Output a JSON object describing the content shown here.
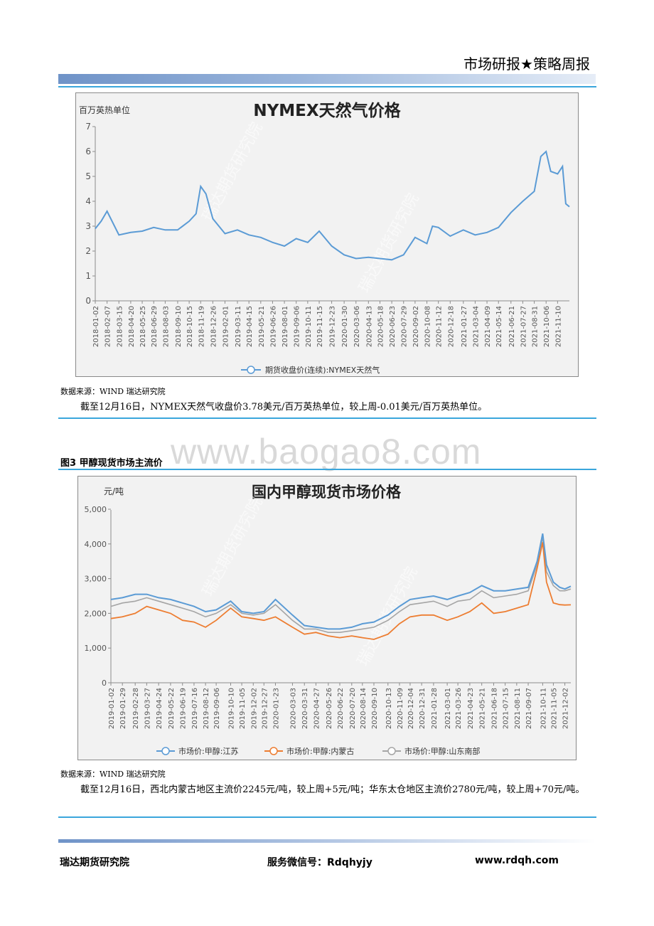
{
  "header": {
    "title": "市场研报★策略周报"
  },
  "watermark": "www.baogao8.com",
  "chart1": {
    "title": "NYMEX天然气价格",
    "unit": "百万英热单位",
    "stamp": "瑞达期货研究院",
    "source": "数据来源：WIND 瑞达研究院",
    "summary": "截至12月16日，NYMEX天然气收盘价3.78美元/百万英热单位，较上周-0.01美元/百万英热单位。"
  },
  "figure3": {
    "caption": "图3 甲醇现货市场主流价"
  },
  "chart2": {
    "title": "国内甲醇现货市场价格",
    "unit": "元/吨",
    "stamp": "瑞达期货研究院",
    "source": "数据来源：WIND 瑞达研究院",
    "summary": "截至12月16日，西北内蒙古地区主流价2245元/吨，较上周+5元/吨；华东太仓地区主流价2780元/吨，较上周+70元/吨。"
  },
  "footer": {
    "org": "瑞达期货研究院",
    "wechat": "服务微信号：Rdqhyjy",
    "website": "www.rdqh.com"
  },
  "colors": {
    "blue": "#5b9bd5",
    "orange": "#ed7d31",
    "gray": "#a5a5a5",
    "rule": "#3aa6dc"
  },
  "chart_data": [
    {
      "type": "line",
      "title": "NYMEX天然气价格",
      "ylabel": "百万英热单位",
      "ylim": [
        0,
        7
      ],
      "yticks": [
        0,
        1,
        2,
        3,
        4,
        5,
        6,
        7
      ],
      "legend_position": "bottom",
      "grid": false,
      "categories": [
        "2018-01-02",
        "2018-02-07",
        "2018-03-15",
        "2018-04-20",
        "2018-05-25",
        "2018-06-29",
        "2018-08-03",
        "2018-09-10",
        "2018-10-15",
        "2018-11-19",
        "2018-12-26",
        "2019-02-01",
        "2019-03-11",
        "2019-04-15",
        "2019-05-21",
        "2019-06-26",
        "2019-08-01",
        "2019-09-06",
        "2019-10-11",
        "2019-11-15",
        "2019-12-23",
        "2020-01-30",
        "2020-03-06",
        "2020-04-13",
        "2020-05-18",
        "2020-06-23",
        "2020-07-29",
        "2020-09-02",
        "2020-10-08",
        "2020-11-12",
        "2020-12-18",
        "2021-01-27",
        "2021-03-04",
        "2021-04-09",
        "2021-05-14",
        "2021-06-21",
        "2021-07-27",
        "2021-08-31",
        "2021-10-06",
        "2021-11-10"
      ],
      "x": [
        "2018-01-02",
        "2018-01-20",
        "2018-02-07",
        "2018-03-15",
        "2018-04-20",
        "2018-05-25",
        "2018-06-29",
        "2018-08-03",
        "2018-09-10",
        "2018-10-15",
        "2018-11-05",
        "2018-11-19",
        "2018-12-05",
        "2018-12-26",
        "2019-02-01",
        "2019-03-11",
        "2019-04-15",
        "2019-05-21",
        "2019-06-26",
        "2019-08-01",
        "2019-09-06",
        "2019-10-11",
        "2019-11-15",
        "2019-12-23",
        "2020-01-30",
        "2020-03-06",
        "2020-04-13",
        "2020-05-18",
        "2020-06-23",
        "2020-07-29",
        "2020-09-02",
        "2020-10-08",
        "2020-10-25",
        "2020-11-12",
        "2020-12-18",
        "2021-01-27",
        "2021-03-04",
        "2021-04-09",
        "2021-05-14",
        "2021-06-21",
        "2021-07-27",
        "2021-08-31",
        "2021-09-20",
        "2021-10-06",
        "2021-10-20",
        "2021-11-10",
        "2021-11-25",
        "2021-12-05",
        "2021-12-16"
      ],
      "series": [
        {
          "name": "期货收盘价(连续):NYMEX天然气",
          "values": [
            2.9,
            3.2,
            3.6,
            2.65,
            2.75,
            2.8,
            2.95,
            2.85,
            2.85,
            3.2,
            3.5,
            4.6,
            4.3,
            3.3,
            2.7,
            2.85,
            2.65,
            2.55,
            2.35,
            2.2,
            2.5,
            2.35,
            2.8,
            2.2,
            1.85,
            1.7,
            1.75,
            1.7,
            1.65,
            1.85,
            2.55,
            2.3,
            3.0,
            2.95,
            2.6,
            2.85,
            2.65,
            2.75,
            2.95,
            3.55,
            4.0,
            4.4,
            5.8,
            6.0,
            5.2,
            5.1,
            5.4,
            3.9,
            3.78
          ]
        }
      ]
    },
    {
      "type": "line",
      "title": "国内甲醇现货市场价格",
      "ylabel": "元/吨",
      "ylim": [
        0,
        5000
      ],
      "yticks": [
        "0",
        "1,000",
        "2,000",
        "3,000",
        "4,000",
        "5,000"
      ],
      "legend_position": "bottom",
      "grid": false,
      "categories": [
        "2019-01-02",
        "2019-01-29",
        "2019-02-28",
        "2019-03-27",
        "2019-04-24",
        "2019-05-22",
        "2019-06-19",
        "2019-07-16",
        "2019-08-12",
        "2019-09-06",
        "2019-10-10",
        "2019-11-05",
        "2019-12-02",
        "2019-12-27",
        "2020-01-23",
        "2020-03-03",
        "2020-03-31",
        "2020-04-27",
        "2020-05-26",
        "2020-06-22",
        "2020-07-20",
        "2020-08-14",
        "2020-09-10",
        "2020-10-13",
        "2020-11-09",
        "2020-12-04",
        "2020-12-31",
        "2021-01-28",
        "2021-03-01",
        "2021-03-26",
        "2021-04-23",
        "2021-05-21",
        "2021-06-18",
        "2021-07-15",
        "2021-08-11",
        "2021-09-07",
        "2021-10-11",
        "2021-11-05",
        "2021-12-02"
      ],
      "x": [
        "2019-01-02",
        "2019-01-29",
        "2019-02-28",
        "2019-03-27",
        "2019-04-24",
        "2019-05-22",
        "2019-06-19",
        "2019-07-16",
        "2019-08-12",
        "2019-09-06",
        "2019-10-10",
        "2019-11-05",
        "2019-12-02",
        "2019-12-27",
        "2020-01-23",
        "2020-03-03",
        "2020-03-31",
        "2020-04-27",
        "2020-05-26",
        "2020-06-22",
        "2020-07-20",
        "2020-08-14",
        "2020-09-10",
        "2020-10-13",
        "2020-11-09",
        "2020-12-04",
        "2020-12-31",
        "2021-01-28",
        "2021-03-01",
        "2021-03-26",
        "2021-04-23",
        "2021-05-21",
        "2021-06-18",
        "2021-07-15",
        "2021-08-11",
        "2021-09-07",
        "2021-09-28",
        "2021-10-11",
        "2021-10-20",
        "2021-11-05",
        "2021-11-20",
        "2021-12-02",
        "2021-12-16"
      ],
      "series": [
        {
          "name": "市场价:甲醇:江苏",
          "values": [
            2400,
            2450,
            2550,
            2550,
            2450,
            2400,
            2300,
            2200,
            2050,
            2100,
            2350,
            2050,
            2000,
            2050,
            2400,
            1950,
            1650,
            1600,
            1550,
            1550,
            1600,
            1700,
            1750,
            1950,
            2200,
            2400,
            2450,
            2500,
            2400,
            2500,
            2600,
            2800,
            2650,
            2650,
            2700,
            2750,
            3500,
            4300,
            3400,
            2900,
            2750,
            2700,
            2780
          ]
        },
        {
          "name": "市场价:甲醇:内蒙古",
          "values": [
            1850,
            1900,
            2000,
            2200,
            2100,
            2000,
            1800,
            1750,
            1600,
            1800,
            2150,
            1900,
            1850,
            1800,
            1900,
            1600,
            1400,
            1450,
            1350,
            1300,
            1350,
            1300,
            1250,
            1400,
            1700,
            1900,
            1950,
            1950,
            1800,
            1900,
            2050,
            2300,
            2000,
            2050,
            2150,
            2250,
            3300,
            4050,
            2900,
            2300,
            2250,
            2240,
            2245
          ]
        },
        {
          "name": "市场价:甲醇:山东南部",
          "values": [
            2200,
            2300,
            2350,
            2450,
            2350,
            2250,
            2150,
            2050,
            1900,
            2000,
            2250,
            2000,
            1950,
            2000,
            2250,
            1800,
            1550,
            1550,
            1450,
            1450,
            1500,
            1550,
            1600,
            1800,
            2050,
            2250,
            2300,
            2350,
            2200,
            2350,
            2400,
            2650,
            2450,
            2500,
            2550,
            2650,
            3400,
            4200,
            3200,
            2800,
            2650,
            2650,
            2700
          ]
        }
      ]
    }
  ]
}
